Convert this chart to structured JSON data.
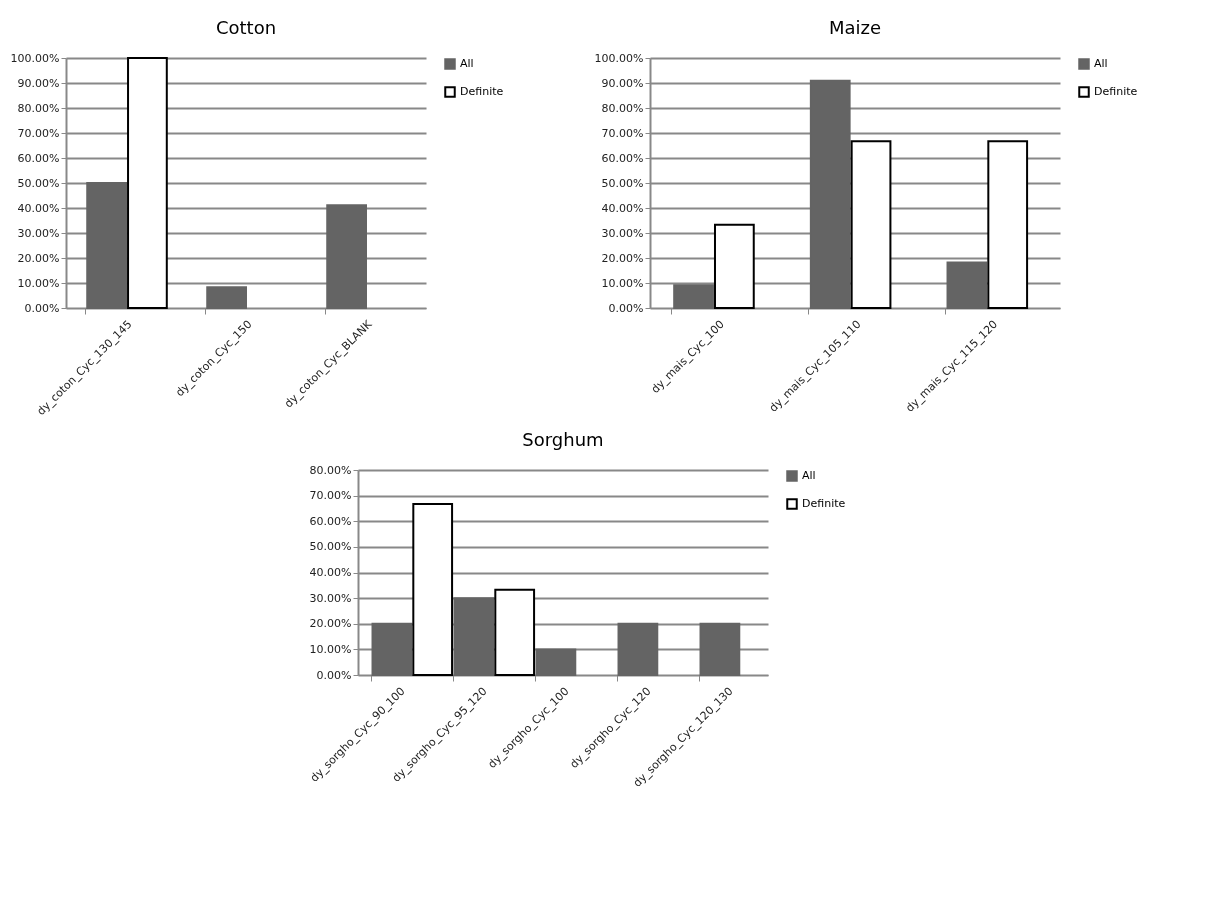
{
  "chart_data": [
    {
      "type": "bar",
      "title": "Cotton",
      "categories": [
        "dy_coton_Cyc_130_145",
        "dy_coton_Cyc_150",
        "dy_coton_Cyc_BLANK"
      ],
      "series": [
        {
          "name": "All",
          "color": "#646464",
          "values": [
            50,
            8.3,
            41.1
          ]
        },
        {
          "name": "Definite",
          "color": "#ffffff",
          "values": [
            100,
            null,
            null
          ]
        }
      ],
      "ylim": [
        0,
        100
      ],
      "yticks": [
        {
          "value": 0,
          "label": "0.00%"
        },
        {
          "value": 10,
          "label": "10.00%"
        },
        {
          "value": 20,
          "label": "20.00%"
        },
        {
          "value": 30,
          "label": "30.00%"
        },
        {
          "value": 40,
          "label": "40.00%"
        },
        {
          "value": 50,
          "label": "50.00%"
        },
        {
          "value": 60,
          "label": "60.00%"
        },
        {
          "value": 70,
          "label": "70.00%"
        },
        {
          "value": 80,
          "label": "80.00%"
        },
        {
          "value": 90,
          "label": "90.00%"
        },
        {
          "value": 100,
          "label": "100.00%"
        }
      ],
      "grid": "y",
      "legend": "right"
    },
    {
      "type": "bar",
      "title": "Maize",
      "categories": [
        "dy_mais_Cyc_100",
        "dy_mais_Cyc_105_110",
        "dy_mais_Cyc_115_120"
      ],
      "series": [
        {
          "name": "All",
          "color": "#646464",
          "values": [
            9.1,
            90.9,
            18.2
          ]
        },
        {
          "name": "Definite",
          "color": "#ffffff",
          "values": [
            33.3,
            66.7,
            66.7
          ]
        }
      ],
      "ylim": [
        0,
        100
      ],
      "yticks": [
        {
          "value": 0,
          "label": "0.00%"
        },
        {
          "value": 10,
          "label": "10.00%"
        },
        {
          "value": 20,
          "label": "20.00%"
        },
        {
          "value": 30,
          "label": "30.00%"
        },
        {
          "value": 40,
          "label": "40.00%"
        },
        {
          "value": 50,
          "label": "50.00%"
        },
        {
          "value": 60,
          "label": "60.00%"
        },
        {
          "value": 70,
          "label": "70.00%"
        },
        {
          "value": 80,
          "label": "80.00%"
        },
        {
          "value": 90,
          "label": "90.00%"
        },
        {
          "value": 100,
          "label": "100.00%"
        }
      ],
      "grid": "y",
      "legend": "right"
    },
    {
      "type": "bar",
      "title": "Sorghum",
      "categories": [
        "dy_sorgho_Cyc_90_100",
        "dy_sorgho_Cyc_95_120",
        "dy_sorgho_Cyc_100",
        "dy_sorgho_Cyc_120",
        "dy_sorgho_Cyc_120_130"
      ],
      "series": [
        {
          "name": "All",
          "color": "#646464",
          "values": [
            20,
            30,
            10,
            20,
            20
          ]
        },
        {
          "name": "Definite",
          "color": "#ffffff",
          "values": [
            66.7,
            33.3,
            null,
            null,
            null
          ]
        }
      ],
      "ylim": [
        0,
        80
      ],
      "yticks": [
        {
          "value": 0,
          "label": "0.00%"
        },
        {
          "value": 10,
          "label": "10.00%"
        },
        {
          "value": 20,
          "label": "20.00%"
        },
        {
          "value": 30,
          "label": "30.00%"
        },
        {
          "value": 40,
          "label": "40.00%"
        },
        {
          "value": 50,
          "label": "50.00%"
        },
        {
          "value": 60,
          "label": "60.00%"
        },
        {
          "value": 70,
          "label": "70.00%"
        },
        {
          "value": 80,
          "label": "80.00%"
        }
      ],
      "grid": "y",
      "legend": "right"
    }
  ]
}
